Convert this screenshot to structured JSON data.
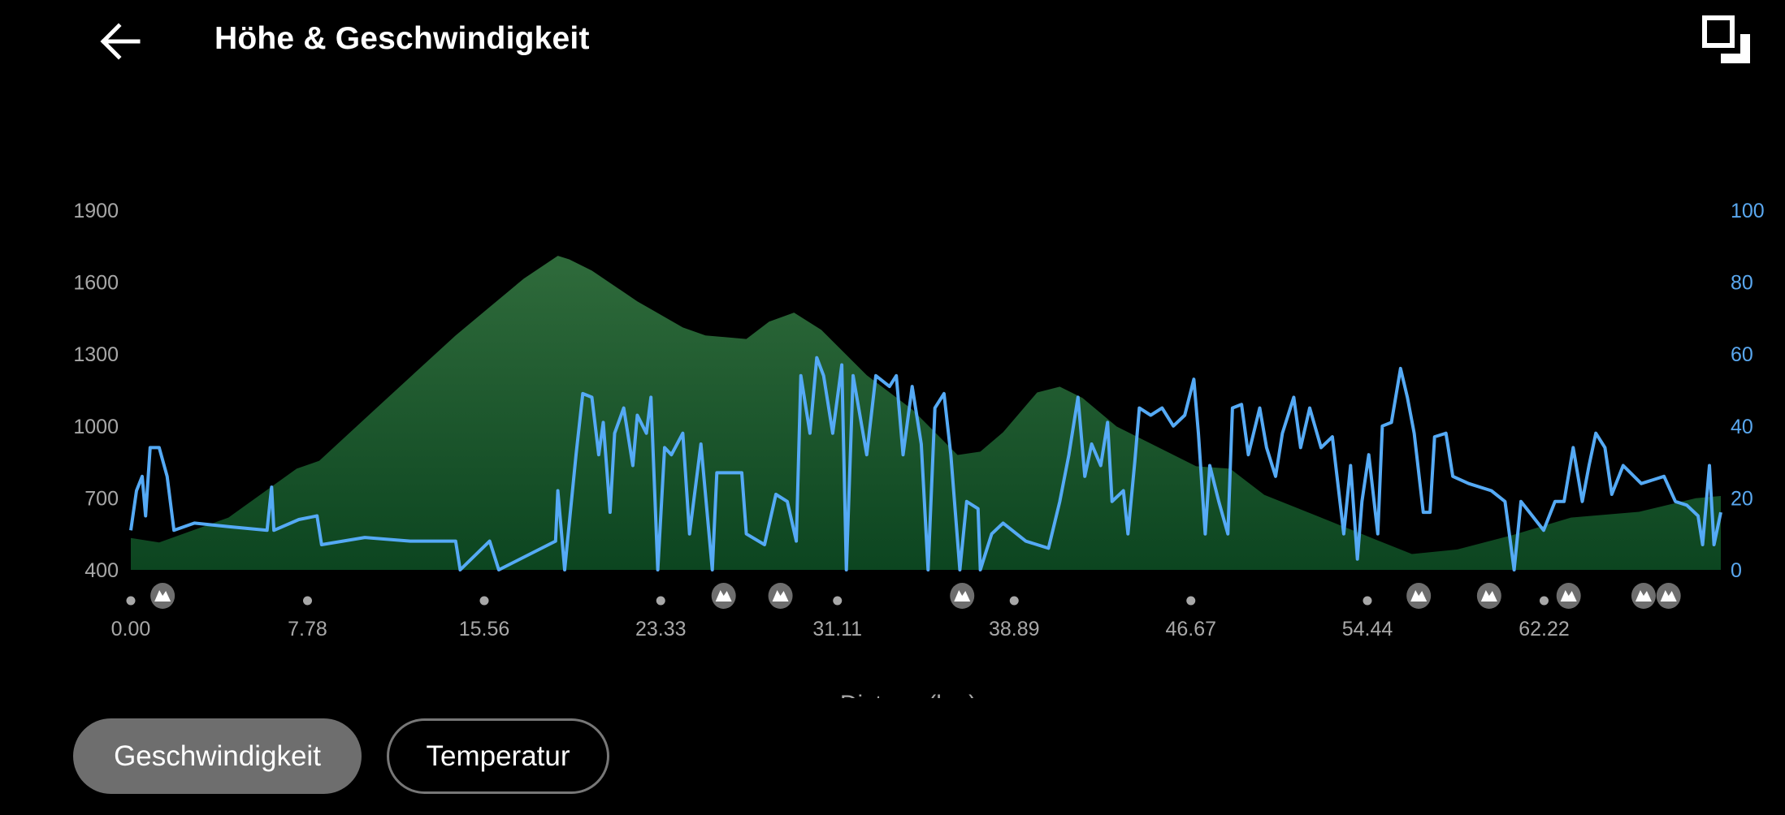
{
  "header": {
    "title": "Höhe & Geschwindigkeit",
    "back_icon": "arrow-left-icon",
    "fullscreen_icon": "fullscreen-icon"
  },
  "buttons": [
    {
      "label": "Geschwindigkeit",
      "selected": true
    },
    {
      "label": "Temperatur",
      "selected": false
    }
  ],
  "colors": {
    "elevation_top": "#2f6b3b",
    "elevation_bottom": "#0c4520",
    "speed": "#55aaf5",
    "left_axis": "#a8a8a8",
    "right_axis": "#5aa8f0",
    "selected_button": "#6e6e6e"
  },
  "chart_data": {
    "type": "area+line",
    "xlabel": "Distanz (km)",
    "xlim": [
      0,
      70
    ],
    "x_ticks": [
      "0.00",
      "7.78",
      "15.56",
      "23.33",
      "31.11",
      "38.89",
      "46.67",
      "54.44",
      "62.22"
    ],
    "x_tick_values": [
      0,
      7.78,
      15.56,
      23.33,
      31.11,
      38.89,
      46.67,
      54.44,
      62.22
    ],
    "y_left": {
      "lim": [
        400,
        1900
      ],
      "ticks": [
        "1900",
        "1600",
        "1300",
        "1000",
        "700",
        "400"
      ]
    },
    "y_right": {
      "lim": [
        0,
        100
      ],
      "ticks": [
        "100",
        "80",
        "60",
        "40",
        "20",
        "0"
      ]
    },
    "peak_markers_km": [
      1.4,
      26.1,
      28.6,
      36.6,
      56.7,
      59.8,
      63.3,
      66.6,
      67.7
    ],
    "elevation": [
      [
        0,
        533
      ],
      [
        1.25,
        514
      ],
      [
        4.3,
        618
      ],
      [
        7.3,
        822
      ],
      [
        8.3,
        855
      ],
      [
        11.3,
        1117
      ],
      [
        14.3,
        1378
      ],
      [
        17.3,
        1615
      ],
      [
        18.8,
        1710
      ],
      [
        19.3,
        1695
      ],
      [
        20.3,
        1648
      ],
      [
        22.3,
        1520
      ],
      [
        24.3,
        1411
      ],
      [
        25.3,
        1378
      ],
      [
        27.1,
        1363
      ],
      [
        28.1,
        1435
      ],
      [
        29.2,
        1473
      ],
      [
        30.4,
        1401
      ],
      [
        32.4,
        1212
      ],
      [
        34.4,
        1069
      ],
      [
        36.4,
        879
      ],
      [
        37.4,
        893
      ],
      [
        38.4,
        974
      ],
      [
        39.9,
        1140
      ],
      [
        40.9,
        1164
      ],
      [
        41.9,
        1117
      ],
      [
        43.4,
        998
      ],
      [
        44.9,
        927
      ],
      [
        46.9,
        832
      ],
      [
        48.4,
        822
      ],
      [
        49.9,
        713
      ],
      [
        52.4,
        618
      ],
      [
        54.9,
        523
      ],
      [
        56.4,
        466
      ],
      [
        58.4,
        485
      ],
      [
        60.9,
        547
      ],
      [
        63.4,
        618
      ],
      [
        66.4,
        642
      ],
      [
        68.9,
        699
      ],
      [
        70,
        708
      ]
    ],
    "speed": [
      [
        0,
        11
      ],
      [
        0.25,
        22
      ],
      [
        0.5,
        26
      ],
      [
        0.65,
        15
      ],
      [
        0.85,
        34
      ],
      [
        1.25,
        34
      ],
      [
        1.6,
        26
      ],
      [
        1.9,
        11
      ],
      [
        2.8,
        13
      ],
      [
        4.3,
        12
      ],
      [
        6.0,
        11
      ],
      [
        6.2,
        23
      ],
      [
        6.3,
        11
      ],
      [
        7.4,
        14
      ],
      [
        8.2,
        15
      ],
      [
        8.4,
        7
      ],
      [
        10.3,
        9
      ],
      [
        12.3,
        8
      ],
      [
        14.3,
        8
      ],
      [
        14.5,
        0
      ],
      [
        15.8,
        8
      ],
      [
        16.2,
        0
      ],
      [
        18.7,
        8
      ],
      [
        18.8,
        22
      ],
      [
        19.1,
        0
      ],
      [
        19.6,
        32
      ],
      [
        19.9,
        49
      ],
      [
        20.3,
        48
      ],
      [
        20.6,
        32
      ],
      [
        20.8,
        41
      ],
      [
        21.1,
        16
      ],
      [
        21.3,
        38
      ],
      [
        21.7,
        45
      ],
      [
        22.1,
        29
      ],
      [
        22.3,
        43
      ],
      [
        22.7,
        38
      ],
      [
        22.9,
        48
      ],
      [
        23.2,
        0
      ],
      [
        23.5,
        34
      ],
      [
        23.8,
        32
      ],
      [
        24.3,
        38
      ],
      [
        24.6,
        10
      ],
      [
        25.1,
        35
      ],
      [
        25.6,
        0
      ],
      [
        25.8,
        27
      ],
      [
        26.9,
        27
      ],
      [
        27.1,
        10
      ],
      [
        27.9,
        7
      ],
      [
        28.4,
        21
      ],
      [
        28.9,
        19
      ],
      [
        29.3,
        8
      ],
      [
        29.5,
        54
      ],
      [
        29.9,
        38
      ],
      [
        30.2,
        59
      ],
      [
        30.5,
        54
      ],
      [
        30.9,
        38
      ],
      [
        31.3,
        57
      ],
      [
        31.5,
        0
      ],
      [
        31.8,
        54
      ],
      [
        32.4,
        32
      ],
      [
        32.8,
        54
      ],
      [
        33.4,
        51
      ],
      [
        33.7,
        54
      ],
      [
        34.0,
        32
      ],
      [
        34.4,
        51
      ],
      [
        34.8,
        35
      ],
      [
        35.1,
        0
      ],
      [
        35.4,
        45
      ],
      [
        35.8,
        49
      ],
      [
        36.1,
        32
      ],
      [
        36.5,
        0
      ],
      [
        36.8,
        19
      ],
      [
        37.3,
        17
      ],
      [
        37.4,
        0
      ],
      [
        37.9,
        10
      ],
      [
        38.4,
        13
      ],
      [
        39.4,
        8
      ],
      [
        40.4,
        6
      ],
      [
        40.9,
        19
      ],
      [
        41.3,
        32
      ],
      [
        41.7,
        48
      ],
      [
        42.0,
        26
      ],
      [
        42.3,
        35
      ],
      [
        42.7,
        29
      ],
      [
        43.0,
        41
      ],
      [
        43.2,
        19
      ],
      [
        43.7,
        22
      ],
      [
        43.9,
        10
      ],
      [
        44.2,
        30
      ],
      [
        44.4,
        45
      ],
      [
        44.9,
        43
      ],
      [
        45.4,
        45
      ],
      [
        45.9,
        40
      ],
      [
        46.4,
        43
      ],
      [
        46.8,
        53
      ],
      [
        47.0,
        38
      ],
      [
        47.3,
        10
      ],
      [
        47.5,
        29
      ],
      [
        47.9,
        19
      ],
      [
        48.3,
        10
      ],
      [
        48.5,
        45
      ],
      [
        48.9,
        46
      ],
      [
        49.2,
        32
      ],
      [
        49.7,
        45
      ],
      [
        50.0,
        34
      ],
      [
        50.4,
        26
      ],
      [
        50.7,
        38
      ],
      [
        51.2,
        48
      ],
      [
        51.5,
        34
      ],
      [
        51.9,
        45
      ],
      [
        52.4,
        34
      ],
      [
        52.9,
        37
      ],
      [
        53.4,
        10
      ],
      [
        53.7,
        29
      ],
      [
        54.0,
        3
      ],
      [
        54.2,
        19
      ],
      [
        54.5,
        32
      ],
      [
        54.9,
        10
      ],
      [
        55.1,
        40
      ],
      [
        55.5,
        41
      ],
      [
        55.9,
        56
      ],
      [
        56.2,
        48
      ],
      [
        56.5,
        38
      ],
      [
        56.9,
        16
      ],
      [
        57.2,
        16
      ],
      [
        57.4,
        37
      ],
      [
        57.9,
        38
      ],
      [
        58.2,
        26
      ],
      [
        58.9,
        24
      ],
      [
        59.9,
        22
      ],
      [
        60.5,
        19
      ],
      [
        60.9,
        0
      ],
      [
        61.2,
        19
      ],
      [
        61.7,
        15
      ],
      [
        62.2,
        11
      ],
      [
        62.7,
        19
      ],
      [
        63.1,
        19
      ],
      [
        63.5,
        34
      ],
      [
        63.9,
        19
      ],
      [
        64.2,
        29
      ],
      [
        64.5,
        38
      ],
      [
        64.9,
        34
      ],
      [
        65.2,
        21
      ],
      [
        65.7,
        29
      ],
      [
        66.5,
        24
      ],
      [
        67.5,
        26
      ],
      [
        68.0,
        19
      ],
      [
        68.5,
        18
      ],
      [
        69.0,
        15
      ],
      [
        69.2,
        7
      ],
      [
        69.5,
        29
      ],
      [
        69.7,
        7
      ],
      [
        70.0,
        16
      ]
    ]
  }
}
